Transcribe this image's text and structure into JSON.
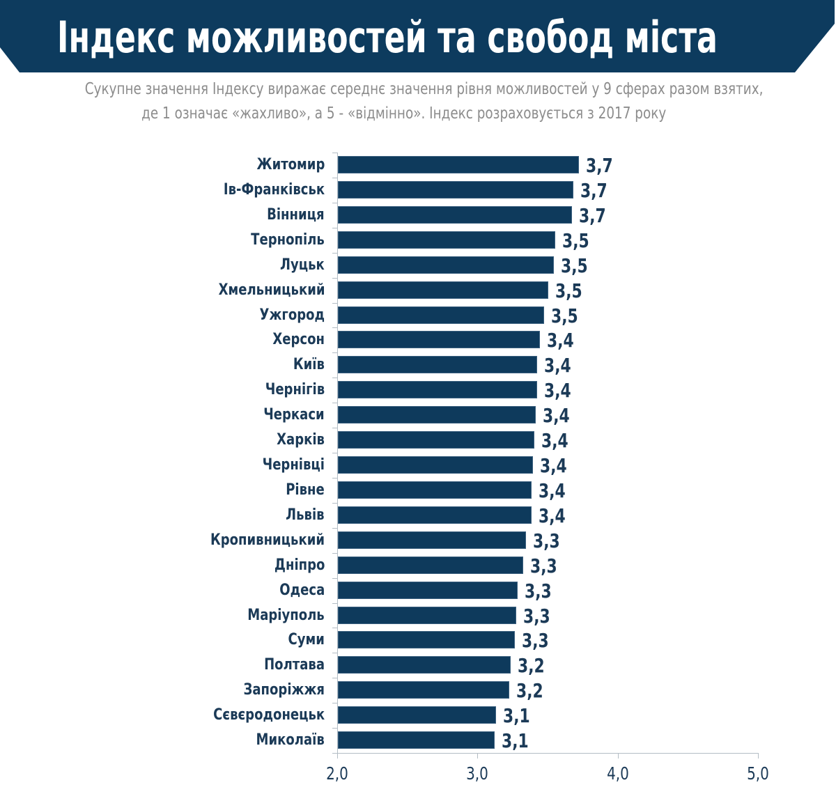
{
  "header": {
    "title": "Індекс можливостей та свобод міста",
    "banner_color": "#0d3b5e"
  },
  "subtitle": {
    "line1": "Сукупне значення Індексу виражає середнє значення рівня можливостей у 9 сферах разом взятих,",
    "line2": "де 1 означає «жахливо», а 5 - «відмінно». Індекс розраховується з 2017 року"
  },
  "axis": {
    "ticks": [
      "2,0",
      "3,0",
      "4,0",
      "5,0"
    ]
  },
  "colors": {
    "bar": "#0e3a5c",
    "label": "#1b3a57",
    "subtitle": "#8c8c8c",
    "axis": "#b3bcc4"
  },
  "chart_data": {
    "type": "bar",
    "orientation": "horizontal",
    "title": "Індекс можливостей та свобод міста",
    "subtitle": "Сукупне значення Індексу виражає середнє значення рівня можливостей у 9 сферах разом взятих, де 1 означає «жахливо», а 5 - «відмінно». Індекс розраховується з 2017 року",
    "xlabel": "",
    "ylabel": "",
    "xlim": [
      2.0,
      5.0
    ],
    "xticks": [
      2.0,
      3.0,
      4.0,
      5.0
    ],
    "xtick_labels": [
      "2,0",
      "3,0",
      "4,0",
      "5,0"
    ],
    "grid": false,
    "legend": null,
    "categories": [
      "Житомир",
      "Ів-Франківськ",
      "Вінниця",
      "Тернопіль",
      "Луцьк",
      "Хмельницький",
      "Ужгород",
      "Херсон",
      "Київ",
      "Чернігів",
      "Черкаси",
      "Харків",
      "Чернівці",
      "Рівне",
      "Львів",
      "Кропивницький",
      "Дніпро",
      "Одеса",
      "Маріуполь",
      "Суми",
      "Полтава",
      "Запоріжжя",
      "Сєвєродонецьк",
      "Миколаїв"
    ],
    "values": [
      3.72,
      3.68,
      3.67,
      3.55,
      3.54,
      3.5,
      3.47,
      3.44,
      3.42,
      3.42,
      3.41,
      3.4,
      3.39,
      3.38,
      3.38,
      3.34,
      3.32,
      3.28,
      3.27,
      3.26,
      3.23,
      3.22,
      3.13,
      3.12
    ],
    "value_labels": [
      "3,7",
      "3,7",
      "3,7",
      "3,5",
      "3,5",
      "3,5",
      "3,5",
      "3,4",
      "3,4",
      "3,4",
      "3,4",
      "3,4",
      "3,4",
      "3,4",
      "3,4",
      "3,3",
      "3,3",
      "3,3",
      "3,3",
      "3,3",
      "3,2",
      "3,2",
      "3,1",
      "3,1"
    ]
  }
}
